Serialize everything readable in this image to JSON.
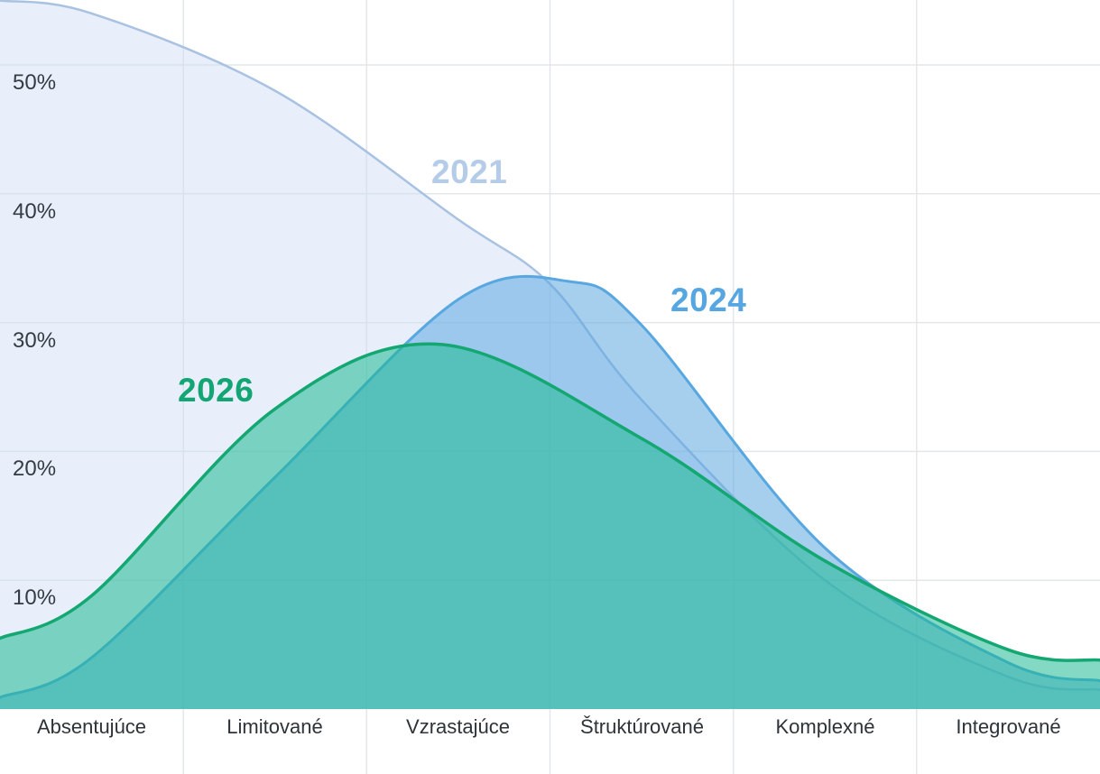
{
  "chart_data": {
    "type": "area",
    "title": "",
    "xlabel": "",
    "ylabel": "",
    "categories": [
      "Absentujúce",
      "Limitované",
      "Vzrastajúce",
      "Štruktúrované",
      "Komplexné",
      "Integrované"
    ],
    "y_tick_labels": [
      "50%",
      "40%",
      "30%",
      "20%",
      "10%"
    ],
    "y_tick_pcts": [
      50,
      40,
      30,
      20,
      10
    ],
    "ylim": [
      0,
      55
    ],
    "grid": true,
    "gridline_color": "#e3e7eb",
    "legend_position": "inline-labels-on-curves",
    "axis_text_color": "#343b42",
    "series": [
      {
        "name": "2021",
        "values": [
          54,
          48,
          38,
          24,
          10,
          2.5
        ],
        "edge_values": {
          "left": 55,
          "right": 1.5
        },
        "control_points": [
          [
            0,
            55
          ],
          [
            0.5,
            54
          ],
          [
            1.5,
            48
          ],
          [
            2.5,
            38
          ],
          [
            3.0,
            33
          ],
          [
            3.5,
            24
          ],
          [
            4.5,
            10
          ],
          [
            5.5,
            2.5
          ],
          [
            6,
            1.5
          ]
        ],
        "stroke": "#a9c2e2",
        "stroke_width": 2.5,
        "fill": "rgba(203,220,243,0.45)",
        "label_color": "#b5cce9"
      },
      {
        "name": "2024",
        "values": [
          4,
          18,
          32,
          29.8,
          12.5,
          3.6
        ],
        "edge_values": {
          "left": 0.9,
          "right": 2.2
        },
        "control_points": [
          [
            0,
            0.9
          ],
          [
            0.5,
            4
          ],
          [
            1.5,
            18
          ],
          [
            2.5,
            31.8
          ],
          [
            3.1,
            33.2
          ],
          [
            3.5,
            29.8
          ],
          [
            4.5,
            12.5
          ],
          [
            5.5,
            3.6
          ],
          [
            6,
            2.2
          ]
        ],
        "stroke": "#58a7e0",
        "stroke_width": 3,
        "fill": "rgba(90,167,224,0.54)",
        "label_color": "#55a6e1"
      },
      {
        "name": "2026",
        "values": [
          9,
          23.3,
          28.3,
          21,
          11.5,
          4.6
        ],
        "edge_values": {
          "left": 5.5,
          "right": 3.8
        },
        "control_points": [
          [
            0,
            5.5
          ],
          [
            0.5,
            8.8
          ],
          [
            1.5,
            23.3
          ],
          [
            2.41,
            28.3
          ],
          [
            3.5,
            21
          ],
          [
            4.5,
            11.5
          ],
          [
            5.5,
            4.6
          ],
          [
            6,
            3.8
          ]
        ],
        "stroke": "#14a771",
        "stroke_width": 3.5,
        "fill": "rgba(30,185,145,0.55)",
        "label_color": "#13a674"
      }
    ]
  }
}
